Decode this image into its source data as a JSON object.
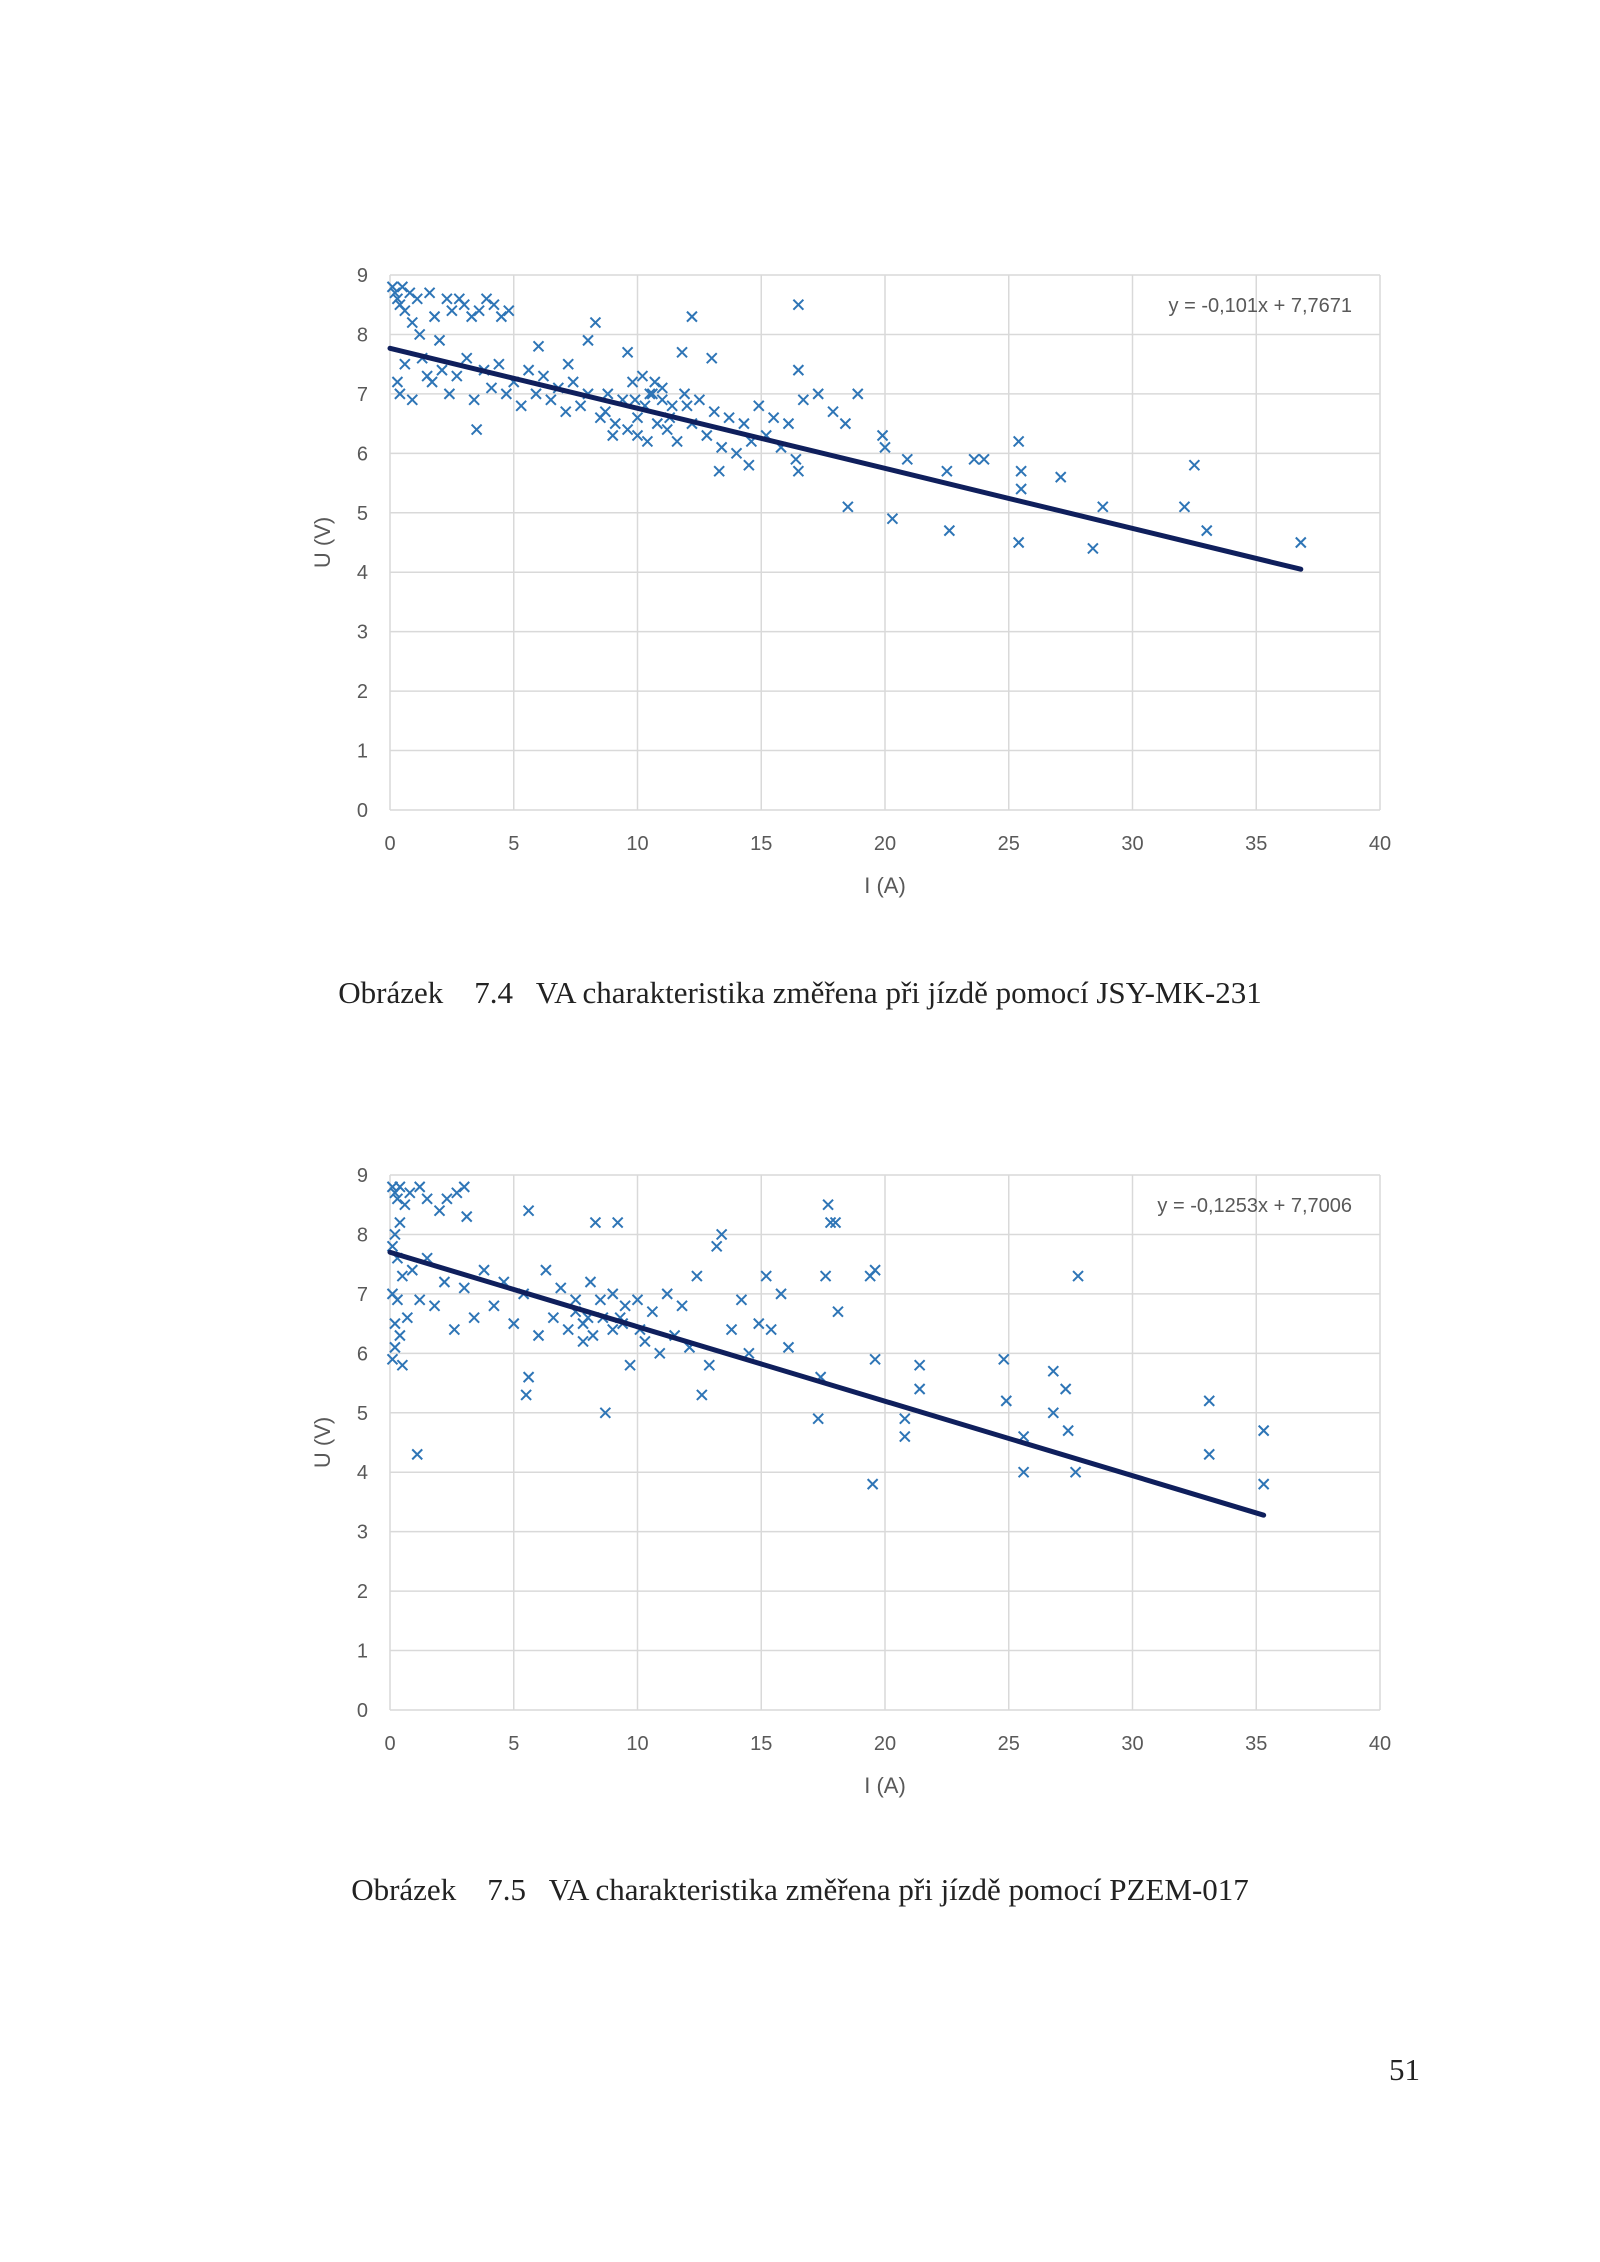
{
  "chart_data": [
    {
      "type": "scatter",
      "xlabel": "I (A)",
      "ylabel": "U (V)",
      "xlim": [
        0,
        40
      ],
      "ylim": [
        0,
        9
      ],
      "xticks": [
        0,
        5,
        10,
        15,
        20,
        25,
        30,
        35,
        40
      ],
      "yticks": [
        0,
        1,
        2,
        3,
        4,
        5,
        6,
        7,
        8,
        9
      ],
      "grid": true,
      "marker": "x",
      "marker_color": "#2e75b6",
      "trendline_color": "#0f1f5c",
      "trendline": {
        "slope": -0.101,
        "intercept": 7.7671,
        "x_start": 0,
        "x_end": 36.8
      },
      "equation": "y = -0,101x + 7,7671",
      "series": [
        {
          "values": [
            [
              0.1,
              8.8
            ],
            [
              0.2,
              8.7
            ],
            [
              0.3,
              8.6
            ],
            [
              0.4,
              8.5
            ],
            [
              0.5,
              8.8
            ],
            [
              0.6,
              8.4
            ],
            [
              0.8,
              8.7
            ],
            [
              0.9,
              8.2
            ],
            [
              1.1,
              8.6
            ],
            [
              1.2,
              8.0
            ],
            [
              1.6,
              8.7
            ],
            [
              1.8,
              8.3
            ],
            [
              2.0,
              7.9
            ],
            [
              2.3,
              8.6
            ],
            [
              2.5,
              8.4
            ],
            [
              2.8,
              8.6
            ],
            [
              3.0,
              8.5
            ],
            [
              3.3,
              8.3
            ],
            [
              3.6,
              8.4
            ],
            [
              3.9,
              8.6
            ],
            [
              4.2,
              8.5
            ],
            [
              4.5,
              8.3
            ],
            [
              4.8,
              8.4
            ],
            [
              3.5,
              6.4
            ],
            [
              1.5,
              7.3
            ],
            [
              0.3,
              7.2
            ],
            [
              0.4,
              7.0
            ],
            [
              0.6,
              7.5
            ],
            [
              0.9,
              6.9
            ],
            [
              1.3,
              7.6
            ],
            [
              1.7,
              7.2
            ],
            [
              2.1,
              7.4
            ],
            [
              2.4,
              7.0
            ],
            [
              2.7,
              7.3
            ],
            [
              3.1,
              7.6
            ],
            [
              3.4,
              6.9
            ],
            [
              3.8,
              7.4
            ],
            [
              4.1,
              7.1
            ],
            [
              4.4,
              7.5
            ],
            [
              4.7,
              7.0
            ],
            [
              5.0,
              7.2
            ],
            [
              5.3,
              6.8
            ],
            [
              5.6,
              7.4
            ],
            [
              5.9,
              7.0
            ],
            [
              6.2,
              7.3
            ],
            [
              6.5,
              6.9
            ],
            [
              6.8,
              7.1
            ],
            [
              7.1,
              6.7
            ],
            [
              7.4,
              7.2
            ],
            [
              7.7,
              6.8
            ],
            [
              8.0,
              7.0
            ],
            [
              8.3,
              8.2
            ],
            [
              8.0,
              7.9
            ],
            [
              8.5,
              6.6
            ],
            [
              8.8,
              7.0
            ],
            [
              9.1,
              6.5
            ],
            [
              9.4,
              6.9
            ],
            [
              9.6,
              6.4
            ],
            [
              9.8,
              7.2
            ],
            [
              10.0,
              6.6
            ],
            [
              10.2,
              7.3
            ],
            [
              10.4,
              6.2
            ],
            [
              10.6,
              7.0
            ],
            [
              10.8,
              6.5
            ],
            [
              11.0,
              7.1
            ],
            [
              11.2,
              6.4
            ],
            [
              11.4,
              6.8
            ],
            [
              11.6,
              6.2
            ],
            [
              11.9,
              7.0
            ],
            [
              12.2,
              6.5
            ],
            [
              12.5,
              6.9
            ],
            [
              12.8,
              6.3
            ],
            [
              13.1,
              6.7
            ],
            [
              13.4,
              6.1
            ],
            [
              13.7,
              6.6
            ],
            [
              14.0,
              6.0
            ],
            [
              14.3,
              6.5
            ],
            [
              14.6,
              6.2
            ],
            [
              14.9,
              6.8
            ],
            [
              15.2,
              6.3
            ],
            [
              15.5,
              6.6
            ],
            [
              15.8,
              6.1
            ],
            [
              16.1,
              6.5
            ],
            [
              16.4,
              5.9
            ],
            [
              16.7,
              6.9
            ],
            [
              16.5,
              7.4
            ],
            [
              16.5,
              5.7
            ],
            [
              17.3,
              7.0
            ],
            [
              17.9,
              6.7
            ],
            [
              18.4,
              6.5
            ],
            [
              18.5,
              5.1
            ],
            [
              18.9,
              7.0
            ],
            [
              19.9,
              6.3
            ],
            [
              20.0,
              6.1
            ],
            [
              20.3,
              4.9
            ],
            [
              20.9,
              5.9
            ],
            [
              22.5,
              5.7
            ],
            [
              22.6,
              4.7
            ],
            [
              23.6,
              5.9
            ],
            [
              24.0,
              5.9
            ],
            [
              25.4,
              6.2
            ],
            [
              25.5,
              5.7
            ],
            [
              25.5,
              5.4
            ],
            [
              25.4,
              4.5
            ],
            [
              27.1,
              5.6
            ],
            [
              28.4,
              4.4
            ],
            [
              28.8,
              5.1
            ],
            [
              32.1,
              5.1
            ],
            [
              32.5,
              5.8
            ],
            [
              33.0,
              4.7
            ],
            [
              36.8,
              4.5
            ],
            [
              12.2,
              8.3
            ],
            [
              16.5,
              8.5
            ],
            [
              13.0,
              7.6
            ],
            [
              11.8,
              7.7
            ],
            [
              9.6,
              7.7
            ],
            [
              7.2,
              7.5
            ],
            [
              6.0,
              7.8
            ],
            [
              14.5,
              5.8
            ],
            [
              13.3,
              5.7
            ],
            [
              10.0,
              6.3
            ],
            [
              9.0,
              6.3
            ],
            [
              10.5,
              7.0
            ],
            [
              11.0,
              6.9
            ],
            [
              10.3,
              6.8
            ],
            [
              9.9,
              6.9
            ],
            [
              10.7,
              7.2
            ],
            [
              11.3,
              6.6
            ],
            [
              8.7,
              6.7
            ],
            [
              12.0,
              6.8
            ]
          ]
        }
      ]
    },
    {
      "type": "scatter",
      "xlabel": "I (A)",
      "ylabel": "U (V)",
      "xlim": [
        0,
        40
      ],
      "ylim": [
        0,
        9
      ],
      "xticks": [
        0,
        5,
        10,
        15,
        20,
        25,
        30,
        35,
        40
      ],
      "yticks": [
        0,
        1,
        2,
        3,
        4,
        5,
        6,
        7,
        8,
        9
      ],
      "grid": true,
      "marker": "x",
      "marker_color": "#2e75b6",
      "trendline_color": "#0f1f5c",
      "trendline": {
        "slope": -0.1253,
        "intercept": 7.7006,
        "x_start": 0,
        "x_end": 35.3
      },
      "equation": "y = -0,1253x + 7,7006",
      "series": [
        {
          "values": [
            [
              0.1,
              8.8
            ],
            [
              0.2,
              8.7
            ],
            [
              0.3,
              8.6
            ],
            [
              0.4,
              8.8
            ],
            [
              0.6,
              8.5
            ],
            [
              0.8,
              8.7
            ],
            [
              1.2,
              8.8
            ],
            [
              1.5,
              8.6
            ],
            [
              2.0,
              8.4
            ],
            [
              2.3,
              8.6
            ],
            [
              2.7,
              8.7
            ],
            [
              3.0,
              8.8
            ],
            [
              3.1,
              8.3
            ],
            [
              1.1,
              4.3
            ],
            [
              0.5,
              5.8
            ],
            [
              0.1,
              5.9
            ],
            [
              0.2,
              6.1
            ],
            [
              0.3,
              6.9
            ],
            [
              0.5,
              7.3
            ],
            [
              0.7,
              6.6
            ],
            [
              0.9,
              7.4
            ],
            [
              1.2,
              6.9
            ],
            [
              1.5,
              7.6
            ],
            [
              1.8,
              6.8
            ],
            [
              2.2,
              7.2
            ],
            [
              2.6,
              6.4
            ],
            [
              3.0,
              7.1
            ],
            [
              3.4,
              6.6
            ],
            [
              3.8,
              7.4
            ],
            [
              4.2,
              6.8
            ],
            [
              4.6,
              7.2
            ],
            [
              5.0,
              6.5
            ],
            [
              5.4,
              7.0
            ],
            [
              5.6,
              8.4
            ],
            [
              5.6,
              5.6
            ],
            [
              5.5,
              5.3
            ],
            [
              6.0,
              6.3
            ],
            [
              6.3,
              7.4
            ],
            [
              6.6,
              6.6
            ],
            [
              6.9,
              7.1
            ],
            [
              7.2,
              6.4
            ],
            [
              7.5,
              6.9
            ],
            [
              7.8,
              6.2
            ],
            [
              8.1,
              7.2
            ],
            [
              8.3,
              8.2
            ],
            [
              8.6,
              6.6
            ],
            [
              8.7,
              5.0
            ],
            [
              9.0,
              7.0
            ],
            [
              9.2,
              8.2
            ],
            [
              9.4,
              6.5
            ],
            [
              9.7,
              5.8
            ],
            [
              10.0,
              6.9
            ],
            [
              10.3,
              6.2
            ],
            [
              10.6,
              6.7
            ],
            [
              10.9,
              6.0
            ],
            [
              11.2,
              7.0
            ],
            [
              11.5,
              6.3
            ],
            [
              11.8,
              6.8
            ],
            [
              12.1,
              6.1
            ],
            [
              12.4,
              7.3
            ],
            [
              12.6,
              5.3
            ],
            [
              12.9,
              5.8
            ],
            [
              13.2,
              7.8
            ],
            [
              13.4,
              8.0
            ],
            [
              13.8,
              6.4
            ],
            [
              14.2,
              6.9
            ],
            [
              14.5,
              6.0
            ],
            [
              14.9,
              6.5
            ],
            [
              15.2,
              7.3
            ],
            [
              15.4,
              6.4
            ],
            [
              15.8,
              7.0
            ],
            [
              16.1,
              6.1
            ],
            [
              17.3,
              4.9
            ],
            [
              17.4,
              5.6
            ],
            [
              17.6,
              7.3
            ],
            [
              17.7,
              8.5
            ],
            [
              17.8,
              8.2
            ],
            [
              18.1,
              6.7
            ],
            [
              18.0,
              8.2
            ],
            [
              19.4,
              7.3
            ],
            [
              19.6,
              7.4
            ],
            [
              19.5,
              3.8
            ],
            [
              19.6,
              5.9
            ],
            [
              20.8,
              4.9
            ],
            [
              20.8,
              4.6
            ],
            [
              21.4,
              5.8
            ],
            [
              21.4,
              5.4
            ],
            [
              24.8,
              5.9
            ],
            [
              24.9,
              5.2
            ],
            [
              25.6,
              4.6
            ],
            [
              25.6,
              4.0
            ],
            [
              26.8,
              5.7
            ],
            [
              26.8,
              5.0
            ],
            [
              27.3,
              5.4
            ],
            [
              27.4,
              4.7
            ],
            [
              27.7,
              4.0
            ],
            [
              27.8,
              7.3
            ],
            [
              33.1,
              5.2
            ],
            [
              33.1,
              4.3
            ],
            [
              35.3,
              4.7
            ],
            [
              35.3,
              3.8
            ],
            [
              8.0,
              6.6
            ],
            [
              8.5,
              6.9
            ],
            [
              9.0,
              6.4
            ],
            [
              9.5,
              6.8
            ],
            [
              7.5,
              6.7
            ],
            [
              8.2,
              6.3
            ],
            [
              9.3,
              6.6
            ],
            [
              10.1,
              6.4
            ],
            [
              7.8,
              6.5
            ],
            [
              0.1,
              7.0
            ],
            [
              0.2,
              6.5
            ],
            [
              0.3,
              7.6
            ],
            [
              0.4,
              6.3
            ],
            [
              0.2,
              8.0
            ],
            [
              0.1,
              7.8
            ],
            [
              0.4,
              8.2
            ]
          ]
        }
      ]
    }
  ],
  "captions": [
    "Obrázek    7.4   VA charakteristika změřena při jízdě pomocí JSY-MK-231",
    "Obrázek    7.5   VA charakteristika změřena při jízdě pomocí PZEM-017"
  ],
  "page_number": "51"
}
